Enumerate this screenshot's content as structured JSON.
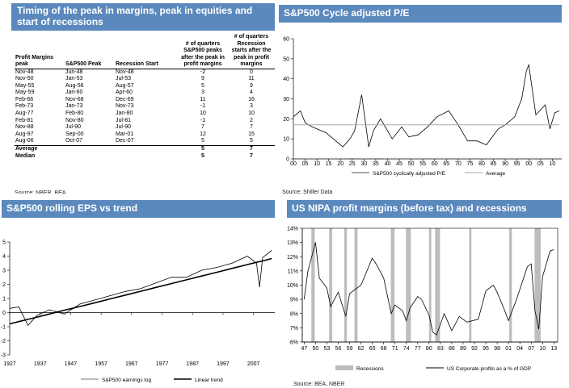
{
  "table_panel": {
    "title_line1": "Timing of the peak in margins, peak in equities and",
    "title_line2": "start of recessions",
    "headers": [
      "Profit Margins peak",
      "S&P500 Peak",
      "Recession Start",
      "# of quarters S&P500 peaks after the peak in profit margins",
      "# of quarters Recession starts after the peak in profit margins"
    ],
    "rows": [
      [
        "Nov-48",
        "Jun-48",
        "Nov-48",
        "-2",
        "0"
      ],
      [
        "Nov-50",
        "Jan-53",
        "Jul-53",
        "9",
        "11"
      ],
      [
        "May-55",
        "Aug-56",
        "Aug-57",
        "5",
        "9"
      ],
      [
        "May-59",
        "Jan-60",
        "Apr-60",
        "3",
        "4"
      ],
      [
        "Feb-66",
        "Nov-68",
        "Dec-69",
        "11",
        "16"
      ],
      [
        "Feb-73",
        "Jan-73",
        "Nov-73",
        "-1",
        "3"
      ],
      [
        "Aug-77",
        "Feb-80",
        "Jan-80",
        "10",
        "10"
      ],
      [
        "Feb-81",
        "Nov-80",
        "Jul-81",
        "-1",
        "2"
      ],
      [
        "Nov-88",
        "Jul-90",
        "Jul-90",
        "7",
        "7"
      ],
      [
        "Aug-97",
        "Sep-00",
        "Mar-01",
        "12",
        "15"
      ],
      [
        "Aug-06",
        "Oct-07",
        "Dec-07",
        "5",
        "5"
      ]
    ],
    "summary": [
      {
        "label": "Average",
        "v1": "5",
        "v2": "7"
      },
      {
        "label": "Median",
        "v1": "5",
        "v2": "7"
      }
    ],
    "source": "Source: NBER, BEA"
  },
  "pe_panel": {
    "title": "S&P500 Cycle adjusted P/E",
    "source": "Source: Shiller Data"
  },
  "eps_panel": {
    "title": "S&P500 rolling EPS vs trend"
  },
  "nipa_panel": {
    "title": "US NIPA profit margins (before tax) and recessions",
    "source": "Source: BEA, NBER"
  },
  "colors": {
    "header_bg": "#5b89bd",
    "bars": "#bdbdbd",
    "average_line": "#aaaaaa",
    "series": "#000000"
  },
  "chart_data": [
    {
      "type": "line",
      "title": "S&P500 Cycle adjusted P/E",
      "x_tick_labels": [
        "00",
        "05",
        "10",
        "15",
        "20",
        "25",
        "30",
        "35",
        "40",
        "45",
        "50",
        "55",
        "60",
        "65",
        "70",
        "75",
        "80",
        "85",
        "90",
        "95",
        "00",
        "05",
        "10"
      ],
      "ylim": [
        0,
        60
      ],
      "y_ticks": [
        0,
        10,
        20,
        30,
        40,
        50,
        60
      ],
      "legend": [
        "S&P500 cyclically adjusted P/E",
        "Average"
      ],
      "legend_placement": "bottom",
      "average": 17,
      "x": [
        1900,
        1903,
        1905,
        1908,
        1910,
        1914,
        1918,
        1921,
        1924,
        1926,
        1929,
        1932,
        1934,
        1937,
        1942,
        1946,
        1949,
        1953,
        1957,
        1961,
        1966,
        1970,
        1974,
        1978,
        1982,
        1987,
        1990,
        1994,
        1997,
        1999,
        2000,
        2003,
        2007,
        2009,
        2011,
        2013
      ],
      "series": [
        {
          "name": "S&P500 cyclically adjusted P/E",
          "values": [
            21,
            24,
            18,
            16,
            15,
            13,
            9,
            6,
            10,
            14,
            32,
            6,
            14,
            20,
            10,
            16,
            11,
            12,
            16,
            21,
            24,
            17,
            9,
            9,
            7,
            15,
            17,
            21,
            30,
            44,
            47,
            22,
            27,
            15,
            23,
            24
          ]
        },
        {
          "name": "Average",
          "values": [
            17,
            17,
            17,
            17,
            17,
            17,
            17,
            17,
            17,
            17,
            17,
            17,
            17,
            17,
            17,
            17,
            17,
            17,
            17,
            17,
            17,
            17,
            17,
            17,
            17,
            17,
            17,
            17,
            17,
            17,
            17,
            17,
            17,
            17,
            17,
            17
          ]
        }
      ]
    },
    {
      "type": "line",
      "title": "S&P500 rolling EPS vs trend",
      "x_tick_labels": [
        "1927",
        "1937",
        "1947",
        "1957",
        "1967",
        "1977",
        "1987",
        "1997",
        "2007"
      ],
      "ylim": [
        -3,
        5
      ],
      "y_ticks": [
        -3,
        -2,
        -1,
        0,
        1,
        2,
        3,
        4,
        5
      ],
      "legend": [
        "S&P500 earnings log",
        "Linear trend"
      ],
      "legend_placement": "bottom",
      "x": [
        1927,
        1930,
        1933,
        1936,
        1940,
        1945,
        1950,
        1955,
        1960,
        1965,
        1970,
        1975,
        1980,
        1985,
        1990,
        1995,
        2000,
        2005,
        2008,
        2009,
        2010,
        2013
      ],
      "series": [
        {
          "name": "S&P500 earnings log",
          "values": [
            0.3,
            0.4,
            -0.9,
            -0.2,
            0.2,
            -0.1,
            0.6,
            0.9,
            1.2,
            1.5,
            1.7,
            2.1,
            2.5,
            2.5,
            3.0,
            3.2,
            3.5,
            4.0,
            3.5,
            1.8,
            3.9,
            4.4
          ]
        },
        {
          "name": "Linear trend",
          "values": [
            -0.8,
            -0.64,
            -0.48,
            -0.32,
            -0.1,
            0.17,
            0.43,
            0.7,
            0.97,
            1.24,
            1.51,
            1.78,
            2.05,
            2.32,
            2.59,
            2.86,
            3.13,
            3.4,
            3.56,
            3.61,
            3.66,
            3.83
          ]
        }
      ]
    },
    {
      "type": "line",
      "title": "US NIPA profit margins (before tax) and recessions",
      "x_tick_labels": [
        "47",
        "50",
        "53",
        "56",
        "59",
        "62",
        "65",
        "68",
        "71",
        "74",
        "77",
        "80",
        "83",
        "86",
        "89",
        "92",
        "95",
        "98",
        "01",
        "04",
        "07",
        "10",
        "13"
      ],
      "ylim": [
        6,
        14
      ],
      "y_ticks": [
        "6%",
        "7%",
        "8%",
        "9%",
        "10%",
        "11%",
        "12%",
        "13%",
        "14%"
      ],
      "legend": [
        "Recessions",
        "US Corporate profits as a % of GDP"
      ],
      "legend_placement": "bottom",
      "recessions": [
        [
          1948.9,
          1949.8
        ],
        [
          1953.6,
          1954.4
        ],
        [
          1957.6,
          1958.3
        ],
        [
          1960.3,
          1961.1
        ],
        [
          1969.9,
          1970.9
        ],
        [
          1973.9,
          1975.2
        ],
        [
          1980.0,
          1980.6
        ],
        [
          1981.6,
          1982.9
        ],
        [
          1990.6,
          1991.2
        ],
        [
          2001.2,
          2001.9
        ],
        [
          2007.9,
          2009.5
        ]
      ],
      "x": [
        1947,
        1948,
        1950,
        1951,
        1953,
        1954,
        1956,
        1958,
        1959,
        1962,
        1965,
        1966,
        1968,
        1970,
        1971,
        1973,
        1974,
        1975,
        1977,
        1978,
        1980,
        1981,
        1982,
        1984,
        1986,
        1988,
        1990,
        1993,
        1995,
        1997,
        1998,
        2000,
        2001,
        2003,
        2006,
        2007,
        2008,
        2009,
        2010,
        2012,
        2013
      ],
      "series": [
        {
          "name": "US Corporate profits as a % of GDP",
          "values": [
            9.0,
            11.0,
            13.0,
            10.5,
            9.8,
            8.5,
            9.5,
            7.8,
            9.4,
            10.0,
            11.9,
            11.5,
            10.5,
            8.0,
            8.6,
            8.2,
            7.5,
            8.4,
            9.2,
            9.0,
            7.9,
            6.7,
            6.5,
            8.0,
            6.8,
            7.8,
            7.4,
            7.6,
            9.6,
            10.0,
            9.5,
            8.2,
            7.5,
            8.9,
            11.3,
            11.5,
            8.2,
            6.9,
            10.6,
            12.4,
            12.5
          ]
        }
      ]
    }
  ]
}
